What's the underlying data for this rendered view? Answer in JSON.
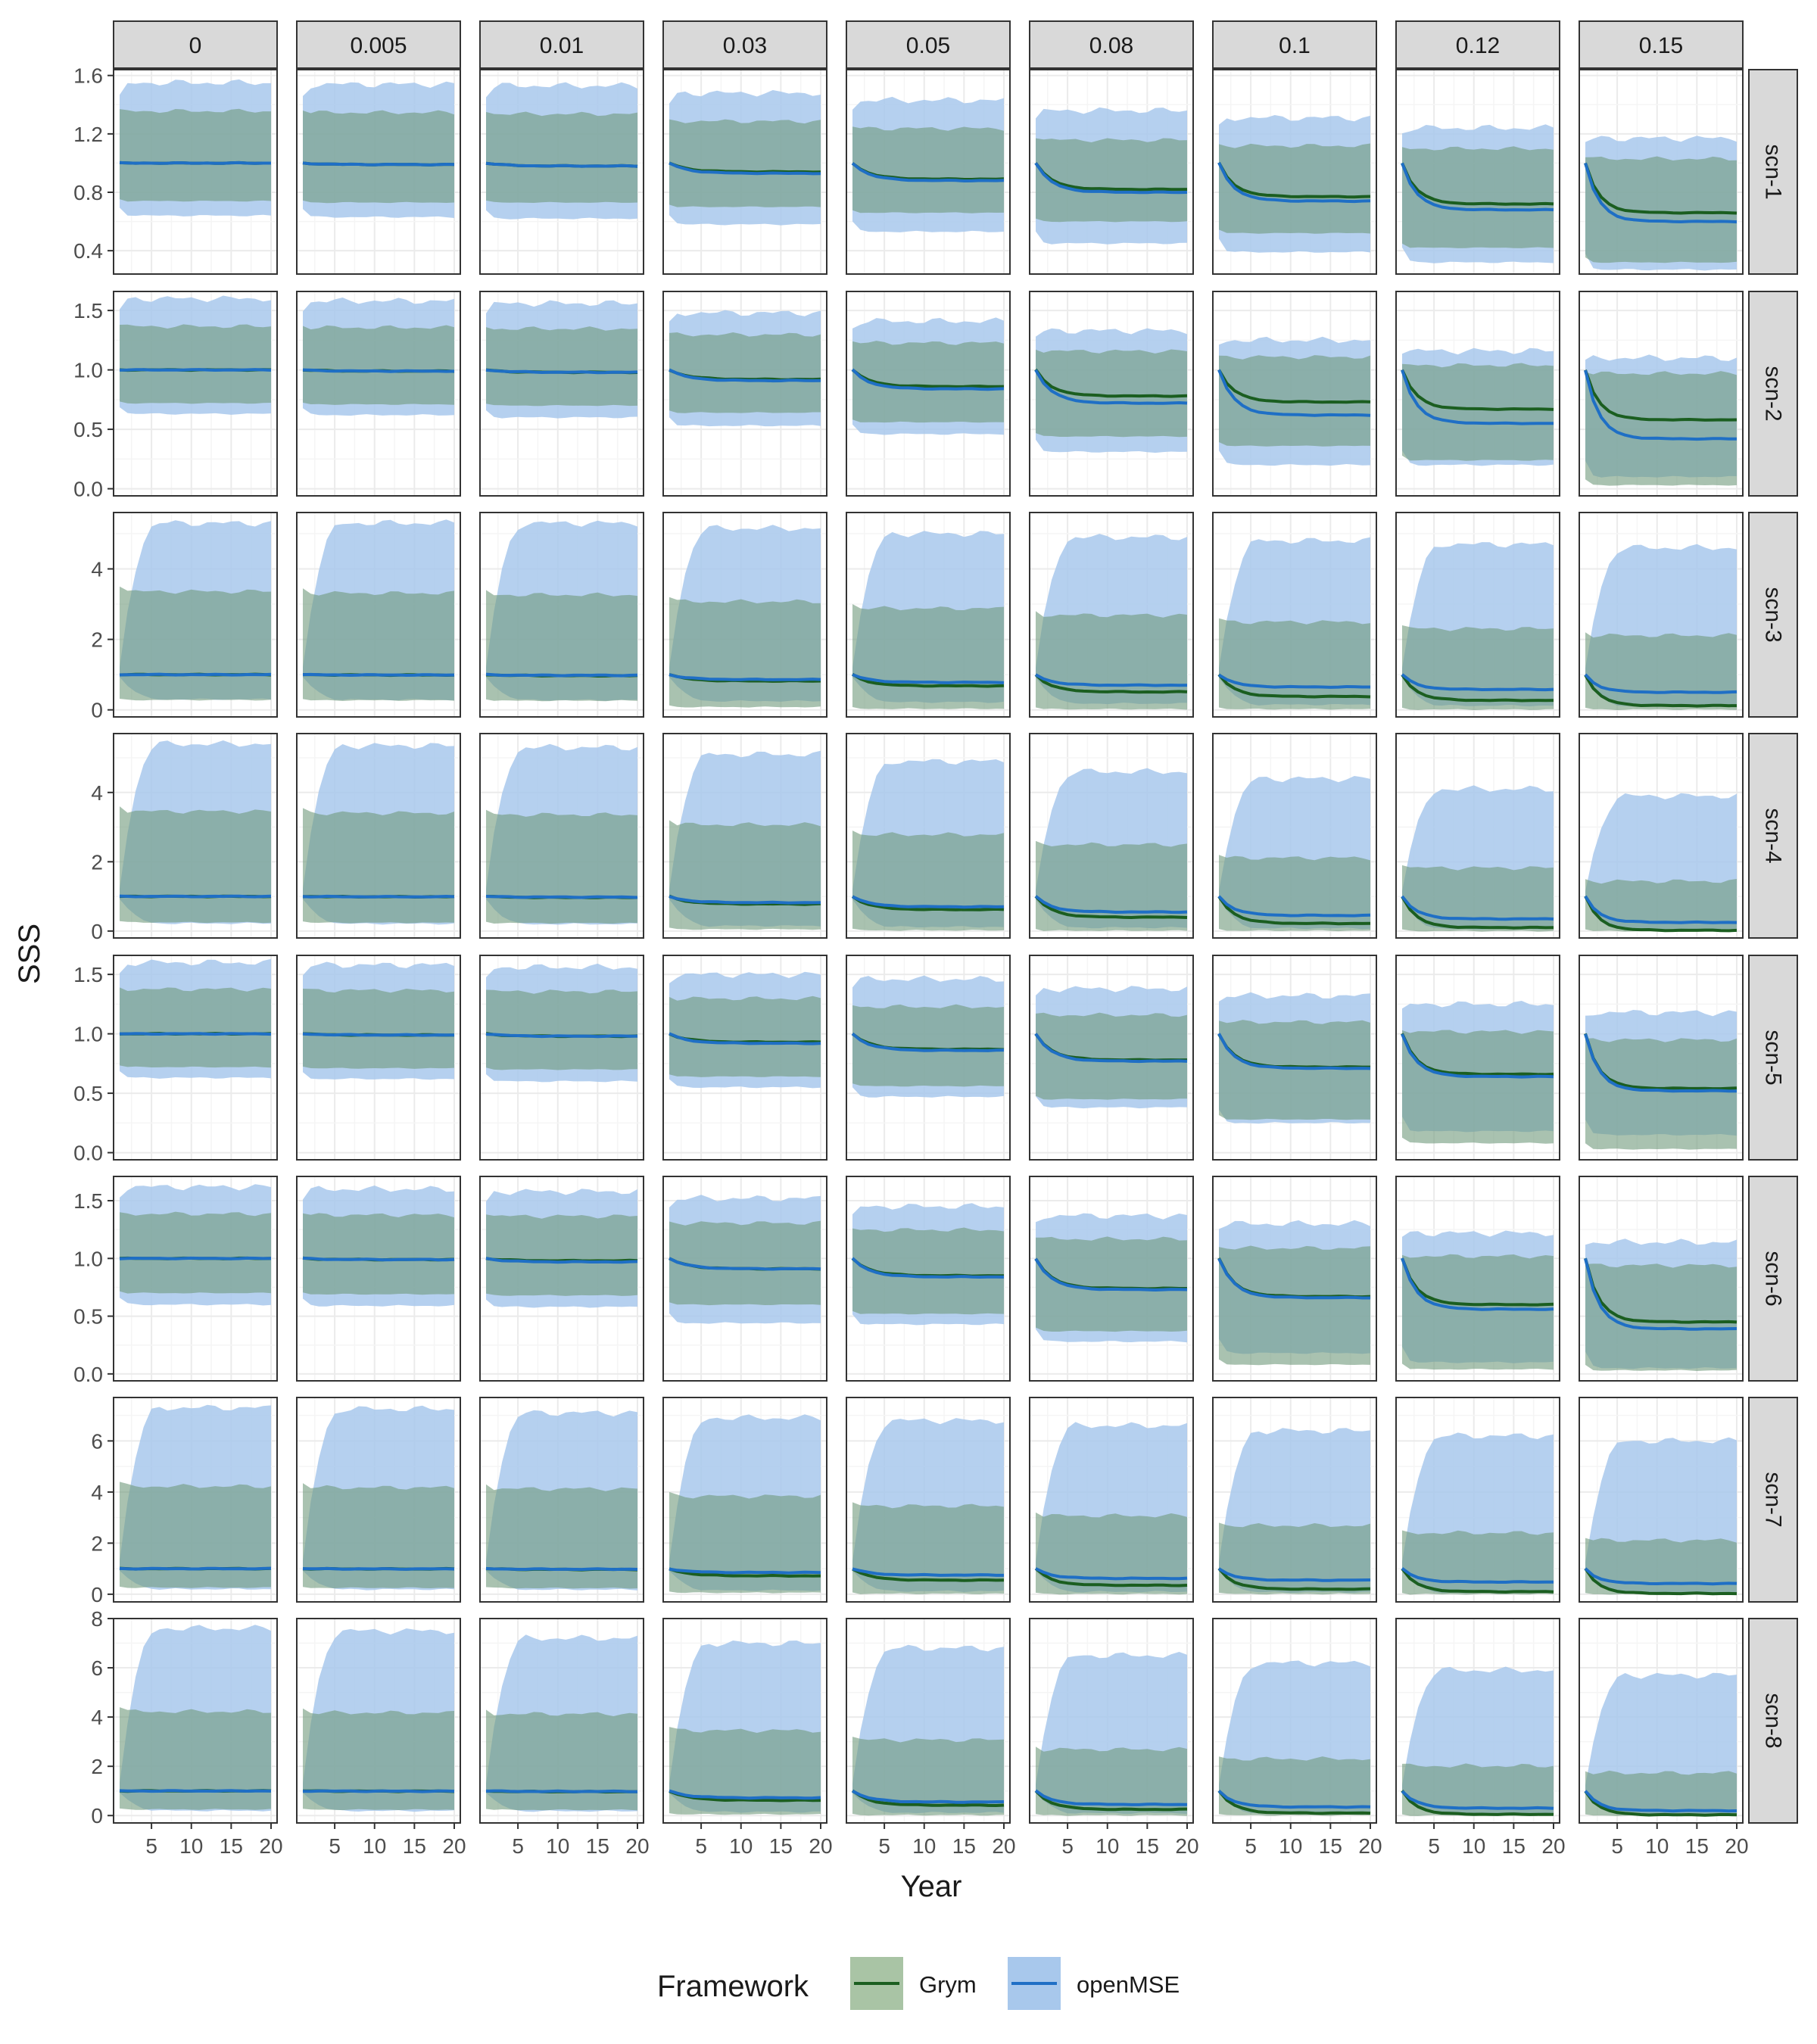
{
  "chart_data": {
    "type": "area",
    "facet_columns": [
      "0",
      "0.005",
      "0.01",
      "0.03",
      "0.05",
      "0.08",
      "0.1",
      "0.12",
      "0.15"
    ],
    "facet_rows": [
      "scn-1",
      "scn-2",
      "scn-3",
      "scn-4",
      "scn-5",
      "scn-6",
      "scn-7",
      "scn-8"
    ],
    "xlabel": "Year",
    "ylabel": "SSS",
    "x_range": [
      1,
      20
    ],
    "x_ticks": [
      5,
      10,
      15,
      20
    ],
    "y_axes": [
      {
        "ylim": [
          0.24,
          1.64
        ],
        "ticks": [
          0.4,
          0.8,
          1.2,
          1.6
        ],
        "tick_labels": [
          "0.4",
          "0.8",
          "1.2",
          "1.6"
        ]
      },
      {
        "ylim": [
          -0.06,
          1.66
        ],
        "ticks": [
          0.0,
          0.5,
          1.0,
          1.5
        ],
        "tick_labels": [
          "0.0",
          "0.5",
          "1.0",
          "1.5"
        ]
      },
      {
        "ylim": [
          -0.2,
          5.6
        ],
        "ticks": [
          0,
          2,
          4
        ],
        "tick_labels": [
          "0",
          "2",
          "4"
        ]
      },
      {
        "ylim": [
          -0.2,
          5.7
        ],
        "ticks": [
          0,
          2,
          4
        ],
        "tick_labels": [
          "0",
          "2",
          "4"
        ]
      },
      {
        "ylim": [
          -0.06,
          1.66
        ],
        "ticks": [
          0.0,
          0.5,
          1.0,
          1.5
        ],
        "tick_labels": [
          "0.0",
          "0.5",
          "1.0",
          "1.5"
        ]
      },
      {
        "ylim": [
          -0.06,
          1.71
        ],
        "ticks": [
          0.0,
          0.5,
          1.0,
          1.5
        ],
        "tick_labels": [
          "0.0",
          "0.5",
          "1.0",
          "1.5"
        ]
      },
      {
        "ylim": [
          -0.3,
          7.7
        ],
        "ticks": [
          0,
          2,
          4,
          6
        ],
        "tick_labels": [
          "0",
          "2",
          "4",
          "6"
        ]
      },
      {
        "ylim": [
          -0.3,
          8.0
        ],
        "ticks": [
          0,
          2,
          4,
          6,
          8
        ],
        "tick_labels": [
          "0",
          "2",
          "4",
          "6",
          "8"
        ]
      }
    ],
    "series": [
      {
        "name": "Grym",
        "line_color": "#1b5e20",
        "band_color": "#a9c4a5"
      },
      {
        "name": "openMSE",
        "line_color": "#1f6fc5",
        "band_color": "#a8c8ec"
      }
    ],
    "legend": {
      "title": "Framework",
      "position": "bottom",
      "labels": [
        "Grym",
        "openMSE"
      ]
    },
    "panel_stats": {
      "note_units": "per row: start median, per-column final medians (Grym, openMSE) and band limits",
      "rows": [
        {
          "start": 1.0,
          "grym_end": [
            1.0,
            0.99,
            0.98,
            0.94,
            0.89,
            0.82,
            0.77,
            0.72,
            0.66
          ],
          "omse_end": [
            1.0,
            0.99,
            0.98,
            0.93,
            0.88,
            0.8,
            0.74,
            0.68,
            0.6
          ],
          "grym_lo": [
            0.74,
            0.73,
            0.73,
            0.7,
            0.66,
            0.6,
            0.52,
            0.42,
            0.32
          ],
          "grym_hi": [
            1.37,
            1.36,
            1.35,
            1.3,
            1.25,
            1.17,
            1.13,
            1.11,
            1.04
          ],
          "omse_lo": [
            0.64,
            0.63,
            0.62,
            0.58,
            0.53,
            0.45,
            0.39,
            0.32,
            0.27
          ],
          "omse_hi": [
            1.55,
            1.54,
            1.53,
            1.48,
            1.43,
            1.36,
            1.31,
            1.24,
            1.17
          ]
        },
        {
          "start": 1.0,
          "grym_end": [
            1.0,
            0.99,
            0.98,
            0.92,
            0.86,
            0.78,
            0.73,
            0.67,
            0.58
          ],
          "omse_end": [
            1.0,
            0.99,
            0.98,
            0.91,
            0.84,
            0.72,
            0.62,
            0.55,
            0.42
          ],
          "grym_lo": [
            0.72,
            0.71,
            0.7,
            0.64,
            0.56,
            0.44,
            0.36,
            0.24,
            0.03
          ],
          "grym_hi": [
            1.38,
            1.37,
            1.36,
            1.31,
            1.24,
            1.17,
            1.12,
            1.05,
            0.98
          ],
          "omse_lo": [
            0.63,
            0.62,
            0.6,
            0.53,
            0.46,
            0.31,
            0.2,
            0.2,
            0.1
          ],
          "omse_hi": [
            1.6,
            1.58,
            1.56,
            1.48,
            1.41,
            1.33,
            1.25,
            1.16,
            1.1
          ]
        },
        {
          "start": 1.0,
          "grym_end": [
            1.0,
            0.99,
            0.97,
            0.82,
            0.68,
            0.51,
            0.38,
            0.27,
            0.12
          ],
          "omse_end": [
            1.0,
            0.99,
            0.98,
            0.86,
            0.78,
            0.7,
            0.65,
            0.58,
            0.5
          ],
          "grym_lo": [
            0.28,
            0.27,
            0.26,
            0.08,
            0.03,
            0.02,
            0.02,
            0.01,
            0.01
          ],
          "grym_hi": [
            3.5,
            3.45,
            3.4,
            3.2,
            3.0,
            2.8,
            2.6,
            2.4,
            2.2
          ],
          "omse_lo": [
            0.3,
            0.29,
            0.28,
            0.25,
            0.22,
            0.18,
            0.15,
            0.12,
            0.1
          ],
          "omse_hi": [
            5.3,
            5.3,
            5.3,
            5.15,
            5.0,
            4.9,
            4.8,
            4.7,
            4.6
          ]
        },
        {
          "start": 1.0,
          "grym_end": [
            1.0,
            0.99,
            0.97,
            0.78,
            0.62,
            0.4,
            0.22,
            0.1,
            0.02
          ],
          "omse_end": [
            1.0,
            0.99,
            0.98,
            0.82,
            0.7,
            0.55,
            0.45,
            0.35,
            0.25
          ],
          "grym_lo": [
            0.25,
            0.24,
            0.23,
            0.05,
            0.02,
            0.01,
            0.01,
            0.0,
            0.0
          ],
          "grym_hi": [
            3.6,
            3.55,
            3.5,
            3.2,
            2.9,
            2.6,
            2.2,
            1.9,
            1.5
          ],
          "omse_lo": [
            0.22,
            0.21,
            0.2,
            0.15,
            0.12,
            0.1,
            0.08,
            0.06,
            0.05
          ],
          "omse_hi": [
            5.4,
            5.35,
            5.3,
            5.1,
            4.9,
            4.6,
            4.4,
            4.1,
            3.9
          ]
        },
        {
          "start": 1.0,
          "grym_end": [
            1.0,
            0.99,
            0.98,
            0.93,
            0.87,
            0.78,
            0.72,
            0.66,
            0.54
          ],
          "omse_end": [
            1.0,
            0.99,
            0.98,
            0.92,
            0.86,
            0.77,
            0.71,
            0.64,
            0.52
          ],
          "grym_lo": [
            0.72,
            0.71,
            0.7,
            0.64,
            0.56,
            0.45,
            0.28,
            0.08,
            0.03
          ],
          "grym_hi": [
            1.39,
            1.38,
            1.37,
            1.31,
            1.24,
            1.17,
            1.11,
            1.03,
            0.96
          ],
          "omse_lo": [
            0.63,
            0.62,
            0.6,
            0.55,
            0.47,
            0.38,
            0.25,
            0.18,
            0.15
          ],
          "omse_hi": [
            1.6,
            1.58,
            1.56,
            1.5,
            1.46,
            1.38,
            1.32,
            1.25,
            1.18
          ]
        },
        {
          "start": 1.0,
          "grym_end": [
            1.0,
            0.99,
            0.98,
            0.91,
            0.85,
            0.74,
            0.67,
            0.6,
            0.45
          ],
          "omse_end": [
            1.0,
            0.99,
            0.97,
            0.91,
            0.84,
            0.73,
            0.66,
            0.56,
            0.39
          ],
          "grym_lo": [
            0.7,
            0.69,
            0.68,
            0.6,
            0.52,
            0.37,
            0.08,
            0.04,
            0.03
          ],
          "grym_hi": [
            1.4,
            1.39,
            1.38,
            1.32,
            1.26,
            1.18,
            1.1,
            1.03,
            0.95
          ],
          "omse_lo": [
            0.6,
            0.59,
            0.58,
            0.44,
            0.43,
            0.28,
            0.18,
            0.1,
            0.05
          ],
          "omse_hi": [
            1.62,
            1.6,
            1.58,
            1.52,
            1.45,
            1.37,
            1.3,
            1.22,
            1.14
          ]
        },
        {
          "start": 1.0,
          "grym_end": [
            1.0,
            0.99,
            0.97,
            0.72,
            0.55,
            0.35,
            0.2,
            0.1,
            0.03
          ],
          "omse_end": [
            1.0,
            0.99,
            0.98,
            0.85,
            0.75,
            0.62,
            0.55,
            0.48,
            0.42
          ],
          "grym_lo": [
            0.26,
            0.25,
            0.24,
            0.06,
            0.02,
            0.01,
            0.01,
            0.0,
            0.0
          ],
          "grym_hi": [
            4.4,
            4.35,
            4.3,
            4.0,
            3.6,
            3.2,
            2.8,
            2.5,
            2.2
          ],
          "omse_lo": [
            0.2,
            0.19,
            0.18,
            0.15,
            0.12,
            0.1,
            0.08,
            0.06,
            0.05
          ],
          "omse_hi": [
            7.3,
            7.25,
            7.1,
            6.9,
            6.8,
            6.6,
            6.4,
            6.2,
            6.0
          ]
        },
        {
          "start": 1.0,
          "grym_end": [
            1.0,
            0.99,
            0.97,
            0.62,
            0.42,
            0.25,
            0.1,
            0.05,
            0.03
          ],
          "omse_end": [
            1.0,
            0.99,
            0.98,
            0.72,
            0.55,
            0.45,
            0.35,
            0.3,
            0.2
          ],
          "grym_lo": [
            0.25,
            0.24,
            0.23,
            0.05,
            0.02,
            0.01,
            0.01,
            0.0,
            0.0
          ],
          "grym_hi": [
            4.4,
            4.35,
            4.3,
            3.6,
            3.2,
            2.8,
            2.4,
            2.1,
            1.8
          ],
          "omse_lo": [
            0.2,
            0.19,
            0.18,
            0.15,
            0.12,
            0.1,
            0.08,
            0.06,
            0.05
          ],
          "omse_hi": [
            7.6,
            7.5,
            7.2,
            7.0,
            6.8,
            6.5,
            6.2,
            5.9,
            5.7
          ]
        }
      ]
    }
  },
  "colors": {
    "strip_bg": "#d9d9d9",
    "strip_border": "#333333",
    "grid_major": "#ebebeb",
    "grid_minor": "#f5f5f5",
    "panel_border": "#333333",
    "text": "#1a1a1a",
    "tick_text": "#4d4d4d"
  }
}
